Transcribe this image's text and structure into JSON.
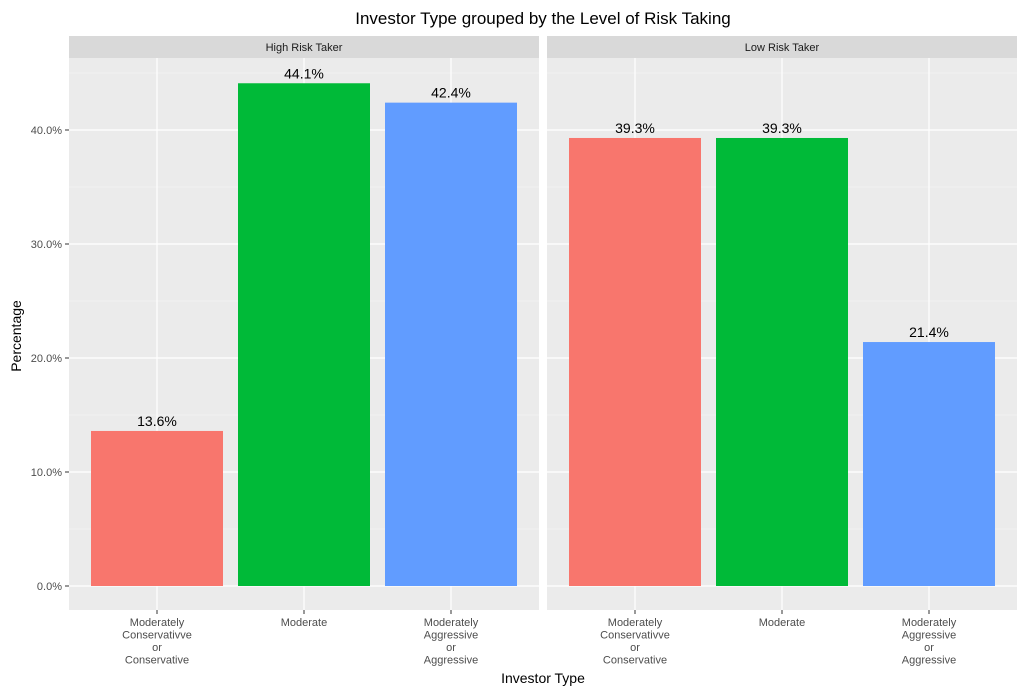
{
  "chart_data": {
    "type": "bar",
    "title": "Investor Type grouped by the Level of Risk Taking",
    "xlabel": "Investor Type",
    "ylabel": "Percentage",
    "ylim": [
      0,
      46
    ],
    "yticks": [
      0,
      10,
      20,
      30,
      40
    ],
    "ytick_labels": [
      "0.0%",
      "10.0%",
      "20.0%",
      "30.0%",
      "40.0%"
    ],
    "grid": true,
    "categories": [
      [
        "Moderately",
        "Conservativve",
        "or",
        "Conservative"
      ],
      [
        "Moderate"
      ],
      [
        "Moderately",
        "Aggressive",
        "or",
        "Aggressive"
      ]
    ],
    "colors": [
      "#F8766D",
      "#00BA38",
      "#619CFF"
    ],
    "panels": [
      {
        "label": "High Risk Taker",
        "values": [
          13.6,
          44.1,
          42.4
        ],
        "value_labels": [
          "13.6%",
          "44.1%",
          "42.4%"
        ]
      },
      {
        "label": "Low Risk Taker",
        "values": [
          39.3,
          39.3,
          21.4
        ],
        "value_labels": [
          "39.3%",
          "39.3%",
          "21.4%"
        ]
      }
    ]
  }
}
